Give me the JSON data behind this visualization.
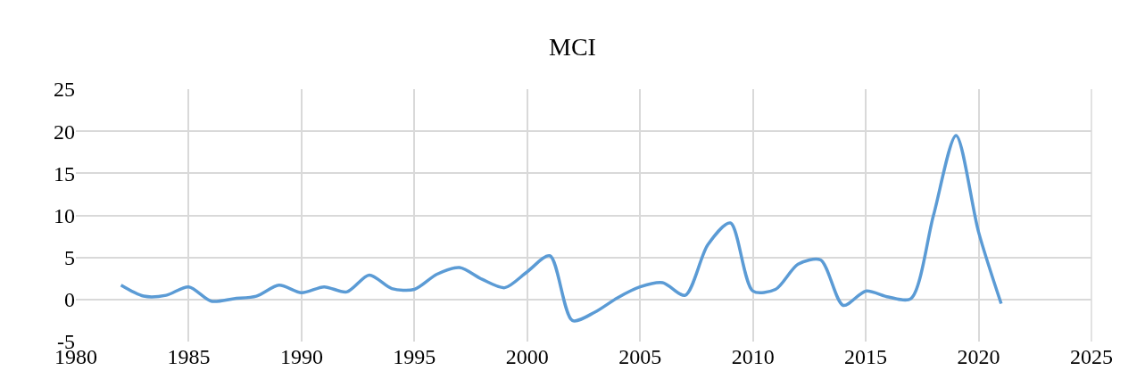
{
  "chart_data": {
    "type": "line",
    "title": "MCI",
    "x": [
      1982,
      1983,
      1984,
      1985,
      1986,
      1987,
      1988,
      1989,
      1990,
      1991,
      1992,
      1993,
      1994,
      1995,
      1996,
      1997,
      1998,
      1999,
      2000,
      2001,
      2002,
      2003,
      2004,
      2005,
      2006,
      2007,
      2008,
      2009,
      2010,
      2011,
      2012,
      2013,
      2014,
      2015,
      2016,
      2017,
      2018,
      2019,
      2020,
      2021
    ],
    "series": [
      {
        "color": "#5b9bd5",
        "values": [
          1.7,
          0.4,
          0.5,
          1.5,
          -0.2,
          0.1,
          0.4,
          1.7,
          0.8,
          1.5,
          0.9,
          2.9,
          1.3,
          1.2,
          3.0,
          3.8,
          2.4,
          1.4,
          3.3,
          5.2,
          -2.5,
          -1.5,
          0.2,
          1.5,
          2.0,
          0.5,
          6.5,
          9.1,
          1.0,
          1.2,
          4.2,
          4.7,
          -0.7,
          1.0,
          0.3,
          0.1,
          10.0,
          19.5,
          8.0,
          -0.5
        ]
      }
    ],
    "xlim": [
      1980,
      2025
    ],
    "xticks": [
      1980,
      1985,
      1990,
      1995,
      2000,
      2005,
      2010,
      2015,
      2020,
      2025
    ],
    "ylim": [
      -5,
      25
    ],
    "yticks": [
      -5,
      0,
      5,
      10,
      15,
      20,
      25
    ],
    "grid": true,
    "marker": "none",
    "line_style": "solid"
  }
}
